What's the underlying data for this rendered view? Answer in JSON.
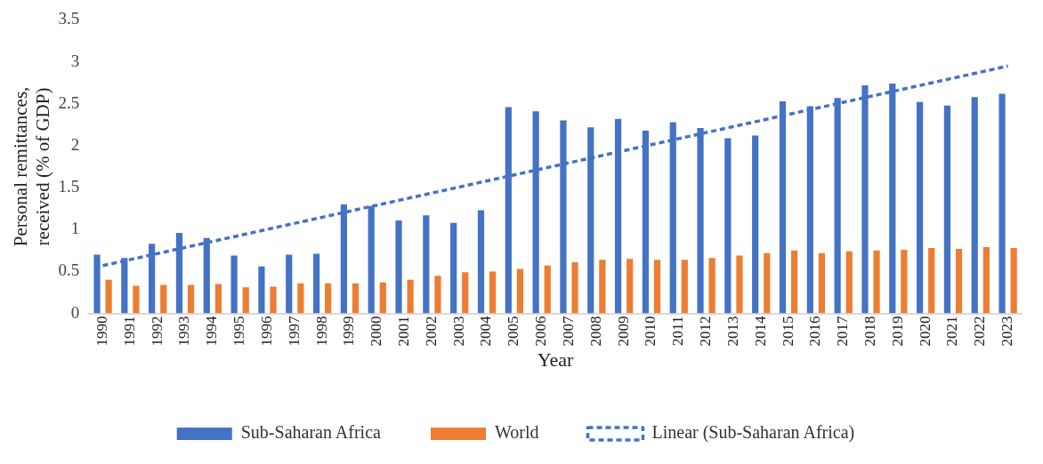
{
  "chart_data": {
    "type": "bar",
    "xlabel": "Year",
    "ylabel": "Personal remittances, received (% of GDP)",
    "categories": [
      "1990",
      "1991",
      "1992",
      "1993",
      "1994",
      "1995",
      "1996",
      "1997",
      "1998",
      "1999",
      "2000",
      "2001",
      "2002",
      "2003",
      "2004",
      "2005",
      "2006",
      "2007",
      "2008",
      "2009",
      "2010",
      "2011",
      "2012",
      "2013",
      "2014",
      "2015",
      "2016",
      "2017",
      "2018",
      "2019",
      "2020",
      "2021",
      "2022",
      "2023"
    ],
    "series": [
      {
        "name": "Sub-Saharan Africa",
        "color": "#4472c4",
        "values": [
          0.7,
          0.66,
          0.83,
          0.96,
          0.9,
          0.69,
          0.56,
          0.7,
          0.71,
          1.3,
          1.28,
          1.11,
          1.17,
          1.08,
          1.23,
          2.46,
          2.41,
          2.3,
          2.22,
          2.32,
          2.18,
          2.28,
          2.21,
          2.09,
          2.12,
          2.53,
          2.47,
          2.57,
          2.72,
          2.74,
          2.52,
          2.48,
          2.58,
          2.62
        ]
      },
      {
        "name": "World",
        "color": "#ed7d31",
        "values": [
          0.4,
          0.33,
          0.34,
          0.34,
          0.35,
          0.31,
          0.32,
          0.36,
          0.36,
          0.36,
          0.37,
          0.4,
          0.45,
          0.49,
          0.5,
          0.53,
          0.57,
          0.61,
          0.64,
          0.65,
          0.64,
          0.64,
          0.66,
          0.69,
          0.72,
          0.75,
          0.72,
          0.74,
          0.75,
          0.76,
          0.78,
          0.77,
          0.79,
          0.78
        ]
      },
      {
        "name": "Linear (Sub-Saharan Africa)",
        "type": "line",
        "color": "#4472c4",
        "line_style": "dashed",
        "values": [
          0.57,
          null,
          null,
          null,
          null,
          null,
          null,
          null,
          null,
          null,
          null,
          null,
          null,
          null,
          null,
          null,
          null,
          null,
          null,
          null,
          null,
          null,
          null,
          null,
          null,
          null,
          null,
          null,
          null,
          null,
          null,
          null,
          null,
          2.95
        ]
      }
    ],
    "ylim": [
      0,
      3.5
    ],
    "yticks": [
      0,
      0.5,
      1,
      1.5,
      2,
      2.5,
      3,
      3.5
    ],
    "grid": false,
    "legend": "bottom"
  }
}
